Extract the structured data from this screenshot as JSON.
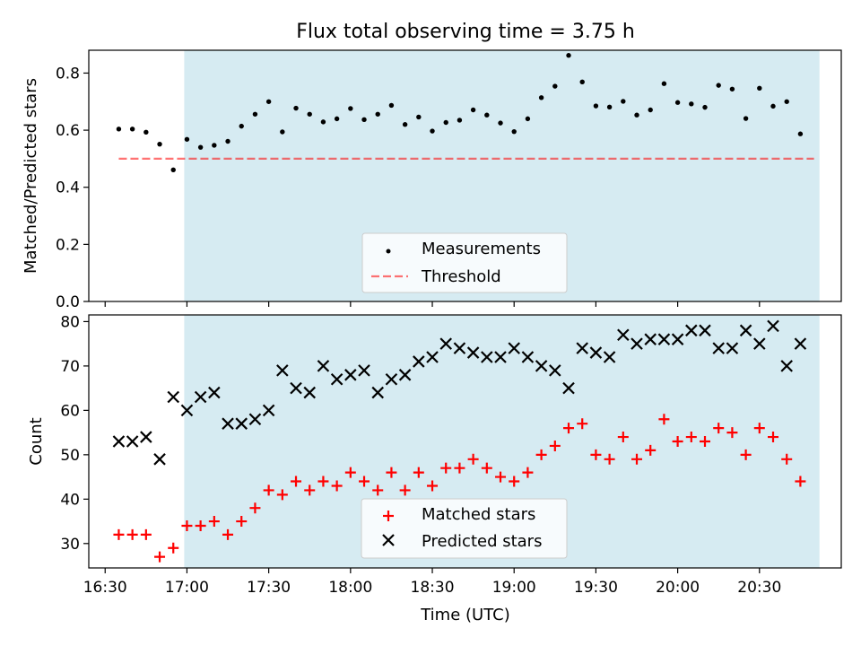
{
  "title": "Flux total observing time = 3.75 h",
  "colors": {
    "shade": "#add8e6",
    "measurement": "#000000",
    "threshold": "#ff0000",
    "matched": "#ff0000",
    "predicted": "#000000"
  },
  "x_axis": {
    "label": "Time (UTC)",
    "range": [
      "16:24",
      "21:00"
    ],
    "ticks": [
      "16:30",
      "17:00",
      "17:30",
      "18:00",
      "18:30",
      "19:00",
      "19:30",
      "20:00",
      "20:30"
    ]
  },
  "shaded_span": [
    "16:59",
    "20:52"
  ],
  "chart_data": [
    {
      "type": "scatter",
      "ylabel": "Matched/Predicted stars",
      "ylim": [
        0,
        0.88
      ],
      "yticks": [
        "0.0",
        "0.2",
        "0.4",
        "0.6",
        "0.8"
      ],
      "legend_position": "lower center",
      "series": [
        {
          "name": "Measurements",
          "marker": "dot",
          "x": [
            "16:35",
            "16:40",
            "16:45",
            "16:50",
            "16:55",
            "17:00",
            "17:05",
            "17:10",
            "17:15",
            "17:20",
            "17:25",
            "17:30",
            "17:35",
            "17:40",
            "17:45",
            "17:50",
            "17:55",
            "18:00",
            "18:05",
            "18:10",
            "18:15",
            "18:20",
            "18:25",
            "18:30",
            "18:35",
            "18:40",
            "18:45",
            "18:50",
            "18:55",
            "19:00",
            "19:05",
            "19:10",
            "19:15",
            "19:20",
            "19:25",
            "19:30",
            "19:35",
            "19:40",
            "19:45",
            "19:50",
            "19:55",
            "20:00",
            "20:05",
            "20:10",
            "20:15",
            "20:20",
            "20:25",
            "20:30",
            "20:35",
            "20:40",
            "20:45"
          ],
          "y": [
            0.604,
            0.604,
            0.593,
            0.551,
            0.461,
            0.568,
            0.54,
            0.547,
            0.561,
            0.614,
            0.656,
            0.7,
            0.594,
            0.677,
            0.656,
            0.629,
            0.64,
            0.676,
            0.637,
            0.656,
            0.687,
            0.62,
            0.646,
            0.597,
            0.627,
            0.635,
            0.671,
            0.653,
            0.625,
            0.595,
            0.64,
            0.714,
            0.754,
            0.862,
            0.769,
            0.685,
            0.681,
            0.701,
            0.653,
            0.671,
            0.763,
            0.697,
            0.692,
            0.68,
            0.757,
            0.744,
            0.641,
            0.747,
            0.684,
            0.7,
            0.587
          ]
        },
        {
          "name": "Threshold",
          "style": "dashed",
          "x": [
            "16:35",
            "20:50"
          ],
          "y": [
            0.5,
            0.5
          ]
        }
      ]
    },
    {
      "type": "scatter",
      "ylabel": "Count",
      "ylim": [
        24.5,
        81.5
      ],
      "yticks": [
        "30",
        "40",
        "50",
        "60",
        "70",
        "80"
      ],
      "legend_position": "lower center",
      "series": [
        {
          "name": "Matched stars",
          "marker": "plus",
          "x": [
            "16:35",
            "16:40",
            "16:45",
            "16:50",
            "16:55",
            "17:00",
            "17:05",
            "17:10",
            "17:15",
            "17:20",
            "17:25",
            "17:30",
            "17:35",
            "17:40",
            "17:45",
            "17:50",
            "17:55",
            "18:00",
            "18:05",
            "18:10",
            "18:15",
            "18:20",
            "18:25",
            "18:30",
            "18:35",
            "18:40",
            "18:45",
            "18:50",
            "18:55",
            "19:00",
            "19:05",
            "19:10",
            "19:15",
            "19:20",
            "19:25",
            "19:30",
            "19:35",
            "19:40",
            "19:45",
            "19:50",
            "19:55",
            "20:00",
            "20:05",
            "20:10",
            "20:15",
            "20:20",
            "20:25",
            "20:30",
            "20:35",
            "20:40",
            "20:45"
          ],
          "y": [
            32,
            32,
            32,
            27,
            29,
            34,
            34,
            35,
            32,
            35,
            38,
            42,
            41,
            44,
            42,
            44,
            43,
            46,
            44,
            42,
            46,
            42,
            46,
            43,
            47,
            47,
            49,
            47,
            45,
            44,
            46,
            50,
            52,
            56,
            57,
            50,
            49,
            54,
            49,
            51,
            58,
            53,
            54,
            53,
            56,
            55,
            50,
            56,
            54,
            49,
            44
          ]
        },
        {
          "name": "Predicted stars",
          "marker": "x",
          "x": [
            "16:35",
            "16:40",
            "16:45",
            "16:50",
            "16:55",
            "17:00",
            "17:05",
            "17:10",
            "17:15",
            "17:20",
            "17:25",
            "17:30",
            "17:35",
            "17:40",
            "17:45",
            "17:50",
            "17:55",
            "18:00",
            "18:05",
            "18:10",
            "18:15",
            "18:20",
            "18:25",
            "18:30",
            "18:35",
            "18:40",
            "18:45",
            "18:50",
            "18:55",
            "19:00",
            "19:05",
            "19:10",
            "19:15",
            "19:20",
            "19:25",
            "19:30",
            "19:35",
            "19:40",
            "19:45",
            "19:50",
            "19:55",
            "20:00",
            "20:05",
            "20:10",
            "20:15",
            "20:20",
            "20:25",
            "20:30",
            "20:35",
            "20:40",
            "20:45"
          ],
          "y": [
            53,
            53,
            54,
            49,
            63,
            60,
            63,
            64,
            57,
            57,
            58,
            60,
            69,
            65,
            64,
            70,
            67,
            68,
            69,
            64,
            67,
            68,
            71,
            72,
            75,
            74,
            73,
            72,
            72,
            74,
            72,
            70,
            69,
            65,
            74,
            73,
            72,
            77,
            75,
            76,
            76,
            76,
            78,
            78,
            74,
            74,
            78,
            75,
            79,
            70,
            75
          ]
        }
      ]
    }
  ]
}
